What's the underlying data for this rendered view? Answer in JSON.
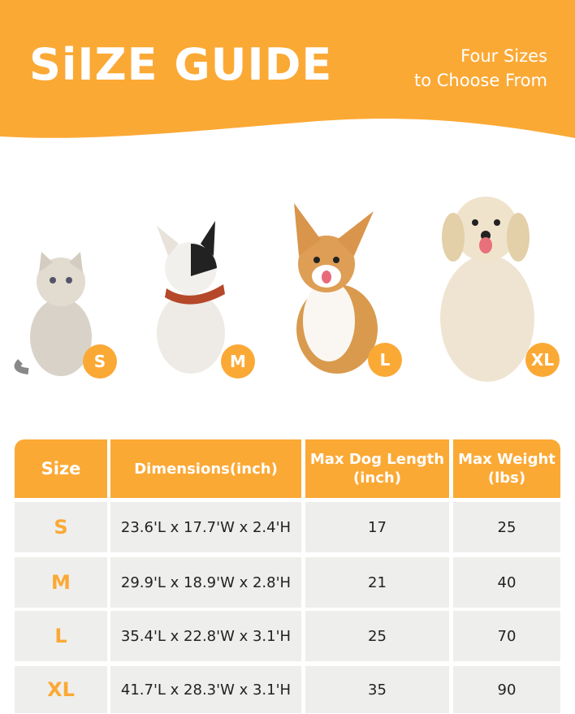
{
  "header": {
    "title": "SiIZE GUIDE",
    "subtitle_line1": "Four Sizes",
    "subtitle_line2": "to Choose From"
  },
  "colors": {
    "accent": "#FBA935",
    "row_bg": "#EEEEEC"
  },
  "pets": [
    {
      "kind": "cat",
      "size": "S"
    },
    {
      "kind": "french-bulldog",
      "size": "M"
    },
    {
      "kind": "corgi",
      "size": "L"
    },
    {
      "kind": "golden-retriever",
      "size": "XL"
    }
  ],
  "table": {
    "headers": [
      "Size",
      "Dimensions(inch)",
      "Max Dog Length (inch)",
      "Max Weight (lbs)"
    ],
    "rows": [
      {
        "size": "S",
        "dimensions": "23.6'L x 17.7'W x 2.4'H",
        "length": "17",
        "weight": "25"
      },
      {
        "size": "M",
        "dimensions": "29.9'L x 18.9'W x 2.8'H",
        "length": "21",
        "weight": "40"
      },
      {
        "size": "L",
        "dimensions": "35.4'L x 22.8'W x 3.1'H",
        "length": "25",
        "weight": "70"
      },
      {
        "size": "XL",
        "dimensions": "41.7'L x 28.3'W x 3.1'H",
        "length": "35",
        "weight": "90"
      }
    ]
  }
}
